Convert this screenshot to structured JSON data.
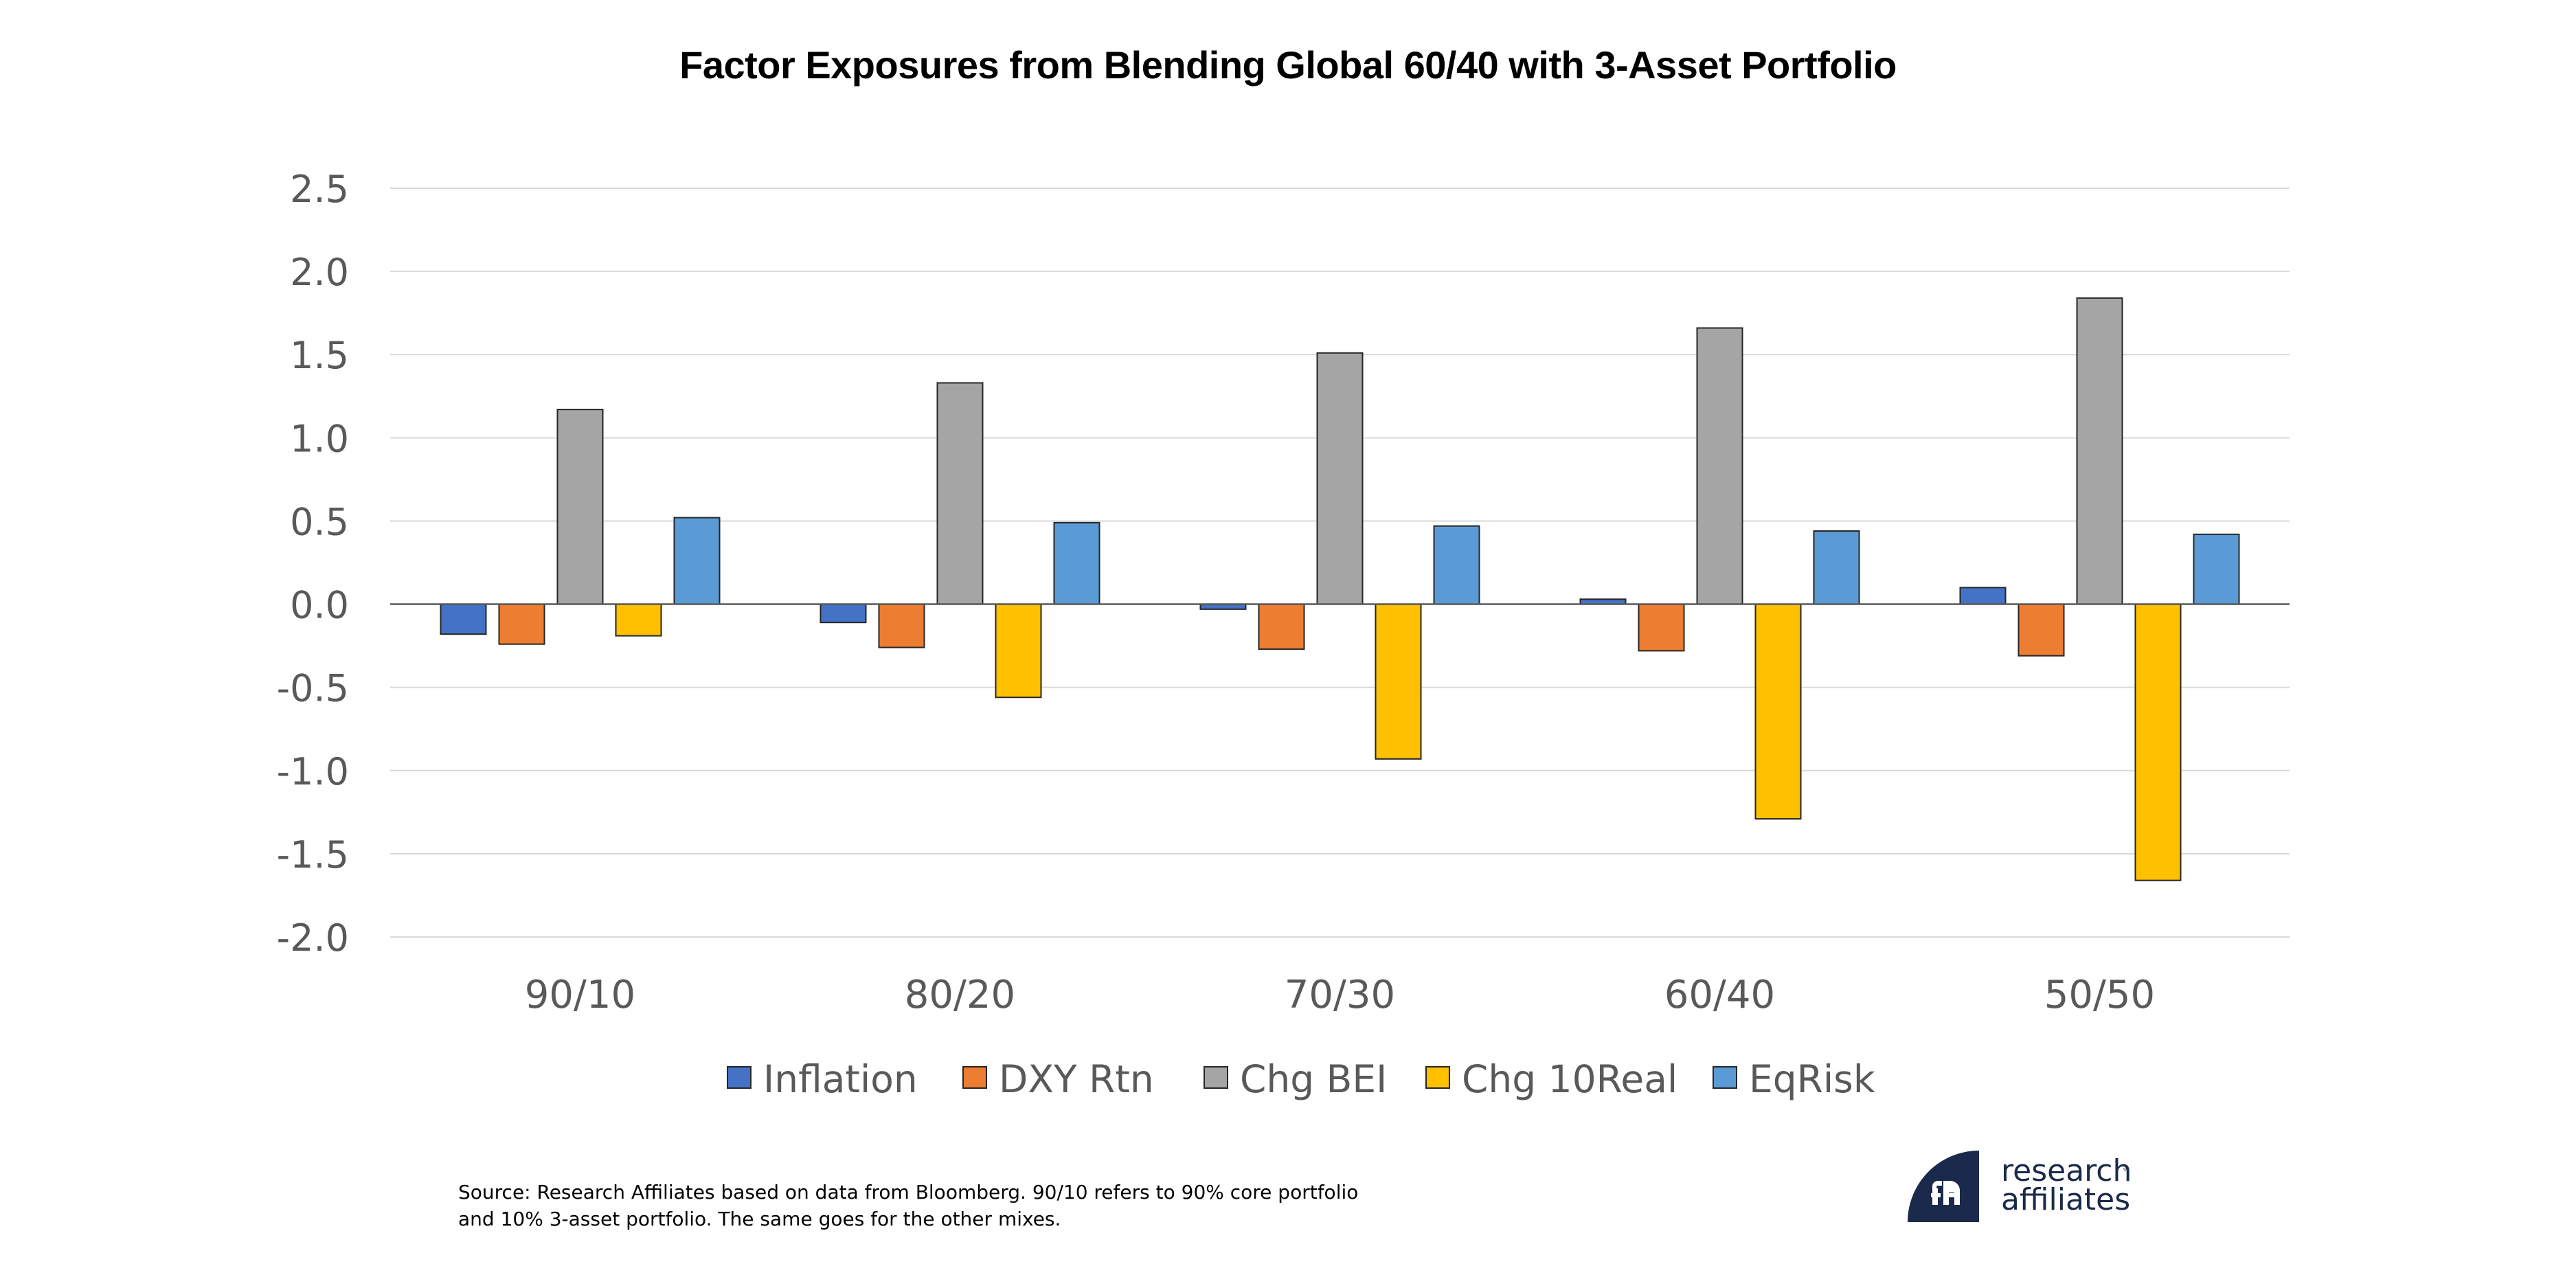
{
  "chart_data": {
    "type": "bar",
    "title": "Factor Exposures from Blending Global 60/40 with 3-Asset Portfolio",
    "xlabel": "",
    "ylabel": "",
    "categories": [
      "90/10",
      "80/20",
      "70/30",
      "60/40",
      "50/50"
    ],
    "series": [
      {
        "name": "Inflation",
        "color": "#4472C4",
        "values": [
          -0.18,
          -0.11,
          -0.03,
          0.03,
          0.1
        ]
      },
      {
        "name": "DXY Rtn",
        "color": "#ED7D31",
        "values": [
          -0.24,
          -0.26,
          -0.27,
          -0.28,
          -0.31
        ]
      },
      {
        "name": "Chg BEI",
        "color": "#A5A5A5",
        "values": [
          1.17,
          1.33,
          1.51,
          1.66,
          1.84
        ]
      },
      {
        "name": "Chg 10Real",
        "color": "#FFC000",
        "values": [
          -0.19,
          -0.56,
          -0.93,
          -1.29,
          -1.66
        ]
      },
      {
        "name": "EqRisk",
        "color": "#5B9BD5",
        "values": [
          0.52,
          0.49,
          0.47,
          0.44,
          0.42
        ]
      }
    ],
    "ylim": [
      -2.0,
      2.5
    ],
    "yticks": [
      2.5,
      2.0,
      1.5,
      1.0,
      0.5,
      0.0,
      -0.5,
      -1.0,
      -1.5,
      -2.0
    ],
    "ytick_labels": [
      "2.5",
      "2.0",
      "1.5",
      "1.0",
      "0.5",
      "0.0",
      "-0.5",
      "-1.0",
      "-1.5",
      "-2.0"
    ],
    "grid": true,
    "legend_position": "bottom-center"
  },
  "source_note": {
    "line1": "Source: Research Affiliates based on data from Bloomberg. 90/10 refers to 90% core portfolio",
    "line2": "and 10% 3-asset portfolio. The same goes for the other mixes."
  },
  "logo": {
    "line1": "research",
    "line2": "affiliates",
    "trademark": "™",
    "color": "#1B2A4A"
  }
}
